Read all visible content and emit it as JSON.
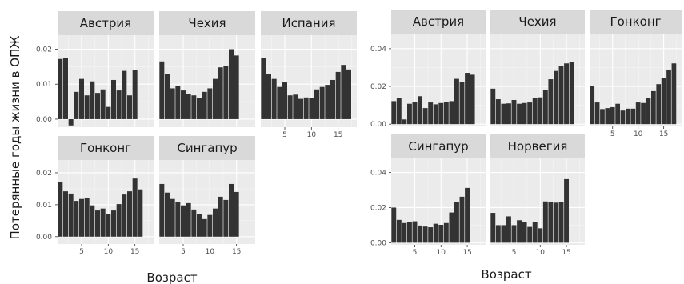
{
  "ylabel": "Потерянные годы жизни в ОПЖ",
  "chart_data": [
    {
      "type": "bar",
      "xlabel": "Возраст",
      "xticks": [
        5,
        10,
        15
      ],
      "xlim": [
        0.5,
        18.5
      ],
      "yticks": [
        0.0,
        0.01,
        0.02
      ],
      "ytick_labels": [
        "0.00",
        "0.01",
        "0.02"
      ],
      "ylim": [
        -0.0023,
        0.024
      ],
      "panel_bg": "#ebebeb",
      "strip_bg": "#d9d9d9",
      "bar_color": "#333333",
      "panels": [
        {
          "title": "Австрия",
          "x": [
            1,
            2,
            3,
            4,
            5,
            6,
            7,
            8,
            9,
            10,
            11,
            12,
            13,
            14,
            15,
            16,
            17
          ],
          "values": [
            0.0172,
            0.0175,
            -0.0018,
            0.0078,
            0.0115,
            0.0068,
            0.0108,
            0.0075,
            0.0085,
            0.0035,
            0.0112,
            0.0082,
            0.0138,
            0.0068,
            0.014,
            null,
            null
          ]
        },
        {
          "title": "Чехия",
          "x": [
            1,
            2,
            3,
            4,
            5,
            6,
            7,
            8,
            9,
            10,
            11,
            12,
            13,
            14,
            15,
            16,
            17
          ],
          "values": [
            0.0165,
            0.0128,
            0.0088,
            0.0095,
            0.0082,
            0.0072,
            0.0068,
            0.006,
            0.0078,
            0.0088,
            0.0115,
            0.0148,
            0.0152,
            0.02,
            0.0182,
            null,
            null
          ]
        },
        {
          "title": "Испания",
          "x": [
            1,
            2,
            3,
            4,
            5,
            6,
            7,
            8,
            9,
            10,
            11,
            12,
            13,
            14,
            15,
            16,
            17
          ],
          "values": [
            0.0175,
            0.0128,
            0.0115,
            0.0092,
            0.0105,
            0.0068,
            0.007,
            0.0058,
            0.0062,
            0.006,
            0.0085,
            0.0092,
            0.0098,
            0.0112,
            0.0135,
            0.0155,
            0.0142
          ]
        },
        {
          "title": "Гонконг",
          "x": [
            1,
            2,
            3,
            4,
            5,
            6,
            7,
            8,
            9,
            10,
            11,
            12,
            13,
            14,
            15,
            16,
            17
          ],
          "values": [
            0.0172,
            0.0142,
            0.0135,
            0.0112,
            0.0118,
            0.0122,
            0.0098,
            0.0082,
            0.0088,
            0.0072,
            0.0082,
            0.0102,
            0.0132,
            0.0142,
            0.0182,
            0.0148,
            null
          ]
        },
        {
          "title": "Сингапур",
          "x": [
            1,
            2,
            3,
            4,
            5,
            6,
            7,
            8,
            9,
            10,
            11,
            12,
            13,
            14,
            15,
            16,
            17
          ],
          "values": [
            0.0165,
            0.0138,
            0.0118,
            0.0108,
            0.0098,
            0.0105,
            0.0085,
            0.007,
            0.0055,
            0.0068,
            0.0088,
            0.0125,
            0.0115,
            0.0165,
            0.014,
            null,
            null
          ]
        }
      ]
    },
    {
      "type": "bar",
      "xlabel": "Возраст",
      "xticks": [
        5,
        10,
        15
      ],
      "xlim": [
        0.5,
        18.5
      ],
      "yticks": [
        0.0,
        0.02,
        0.04
      ],
      "ytick_labels": [
        "0.00",
        "0.02",
        "0.04"
      ],
      "ylim": [
        -0.0012,
        0.048
      ],
      "panel_bg": "#ebebeb",
      "strip_bg": "#d9d9d9",
      "bar_color": "#333333",
      "panels": [
        {
          "title": "Австрия",
          "x": [
            1,
            2,
            3,
            4,
            5,
            6,
            7,
            8,
            9,
            10,
            11,
            12,
            13,
            14,
            15,
            16,
            17
          ],
          "values": [
            0.0122,
            0.014,
            0.0025,
            0.0108,
            0.0118,
            0.0148,
            0.0085,
            0.0115,
            0.0105,
            0.0112,
            0.0118,
            0.0122,
            0.024,
            0.0225,
            0.0272,
            0.0262,
            null
          ]
        },
        {
          "title": "Чехия",
          "x": [
            1,
            2,
            3,
            4,
            5,
            6,
            7,
            8,
            9,
            10,
            11,
            12,
            13,
            14,
            15,
            16,
            17
          ],
          "values": [
            0.0188,
            0.0132,
            0.0108,
            0.011,
            0.0128,
            0.0108,
            0.0112,
            0.0115,
            0.0138,
            0.0142,
            0.018,
            0.0238,
            0.0282,
            0.031,
            0.0322,
            0.033,
            null
          ]
        },
        {
          "title": "Гонконг",
          "x": [
            1,
            2,
            3,
            4,
            5,
            6,
            7,
            8,
            9,
            10,
            11,
            12,
            13,
            14,
            15,
            16,
            17
          ],
          "values": [
            0.02,
            0.0115,
            0.008,
            0.0085,
            0.009,
            0.0108,
            0.0072,
            0.0082,
            0.0082,
            0.0115,
            0.0112,
            0.014,
            0.0175,
            0.0212,
            0.0245,
            0.0285,
            0.0322
          ]
        },
        {
          "title": "Сингапур",
          "x": [
            1,
            2,
            3,
            4,
            5,
            6,
            7,
            8,
            9,
            10,
            11,
            12,
            13,
            14,
            15,
            16,
            17
          ],
          "values": [
            0.02,
            0.013,
            0.0112,
            0.0118,
            0.0122,
            0.0098,
            0.0092,
            0.0088,
            0.0108,
            0.0102,
            0.0112,
            0.0172,
            0.023,
            0.0262,
            0.0312,
            null,
            null
          ]
        },
        {
          "title": "Норвегия",
          "x": [
            1,
            2,
            3,
            4,
            5,
            6,
            7,
            8,
            9,
            10,
            11,
            12,
            13,
            14,
            15,
            16,
            17
          ],
          "values": [
            0.017,
            0.01,
            0.01,
            0.015,
            0.01,
            0.0128,
            0.0118,
            0.009,
            0.0118,
            0.0082,
            0.0235,
            0.0232,
            0.0228,
            0.0232,
            0.0362,
            null,
            null
          ]
        }
      ]
    }
  ]
}
